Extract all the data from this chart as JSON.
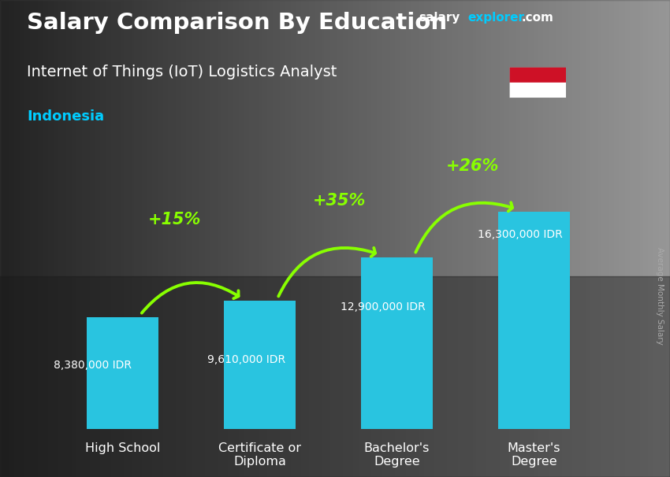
{
  "title": "Salary Comparison By Education",
  "subtitle": "Internet of Things (IoT) Logistics Analyst",
  "country": "Indonesia",
  "categories": [
    "High School",
    "Certificate or\nDiploma",
    "Bachelor's\nDegree",
    "Master's\nDegree"
  ],
  "values": [
    8380000,
    9610000,
    12900000,
    16300000
  ],
  "value_labels": [
    "8,380,000 IDR",
    "9,610,000 IDR",
    "12,900,000 IDR",
    "16,300,000 IDR"
  ],
  "pct_labels": [
    "+15%",
    "+35%",
    "+26%"
  ],
  "bar_color": "#29C4E0",
  "background_top": "#5a5a5a",
  "background_bottom": "#3a3a3a",
  "title_color": "#ffffff",
  "subtitle_color": "#ffffff",
  "country_color": "#00CCFF",
  "value_label_color": "#ffffff",
  "pct_color": "#88FF00",
  "arrow_color": "#88FF00",
  "ylabel": "Average Monthly Salary",
  "ylim_max": 20000000,
  "bar_width": 0.52,
  "site_salary_color": "#ffffff",
  "site_explorer_color": "#00CCFF",
  "site_com_color": "#ffffff"
}
